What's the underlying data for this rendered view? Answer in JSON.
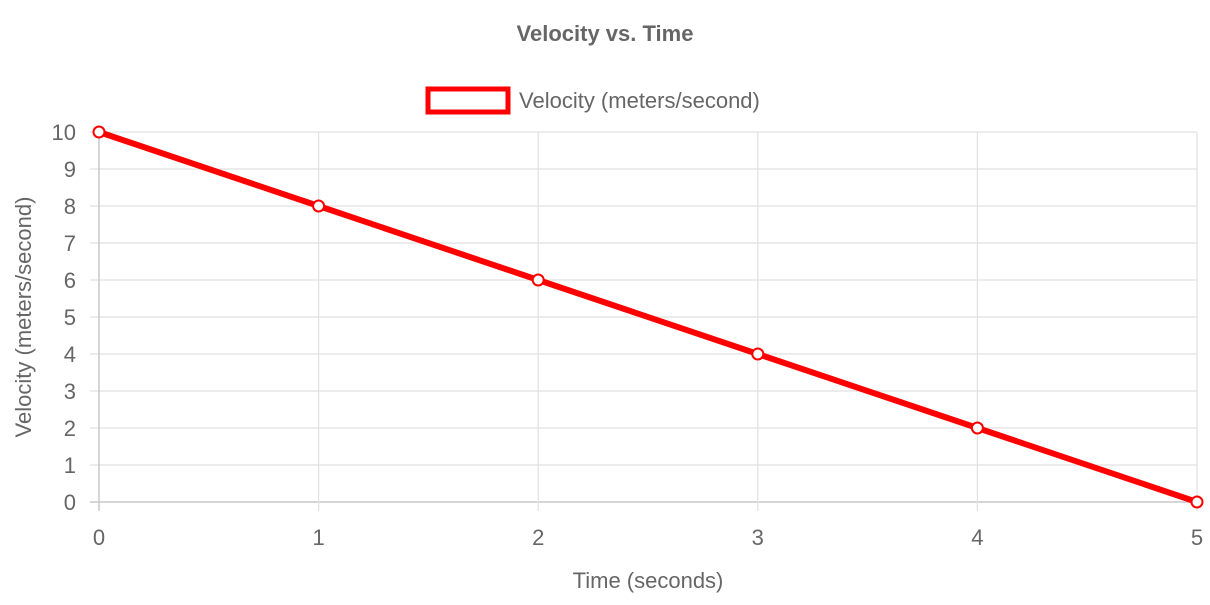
{
  "chart_data": {
    "type": "line",
    "title": "Velocity vs. Time",
    "xlabel": "Time (seconds)",
    "ylabel": "Velocity (meters/second)",
    "x": [
      0,
      1,
      2,
      3,
      4,
      5
    ],
    "xlim": [
      0,
      5
    ],
    "ylim": [
      0,
      10
    ],
    "yticks": [
      0,
      1,
      2,
      3,
      4,
      5,
      6,
      7,
      8,
      9,
      10
    ],
    "grid": true,
    "legend_position": "top",
    "series": [
      {
        "name": "Velocity (meters/second)",
        "values": [
          10,
          8,
          6,
          4,
          2,
          0
        ],
        "color": "#ff0000"
      }
    ]
  }
}
